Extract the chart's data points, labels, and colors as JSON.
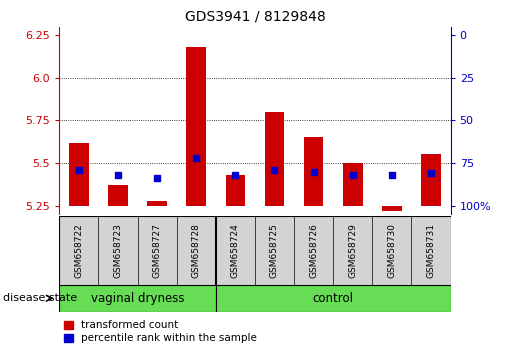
{
  "title": "GDS3941 / 8129848",
  "samples": [
    "GSM658722",
    "GSM658723",
    "GSM658727",
    "GSM658728",
    "GSM658724",
    "GSM658725",
    "GSM658726",
    "GSM658729",
    "GSM658730",
    "GSM658731"
  ],
  "red_values": [
    5.62,
    5.37,
    5.28,
    6.18,
    5.43,
    5.8,
    5.65,
    5.5,
    5.22,
    5.55
  ],
  "blue_values": [
    5.46,
    5.43,
    5.41,
    5.53,
    5.43,
    5.46,
    5.45,
    5.43,
    5.43,
    5.44
  ],
  "ylim": [
    5.2,
    6.3
  ],
  "yticks_left": [
    5.25,
    5.5,
    5.75,
    6.0,
    6.25
  ],
  "yticks_right": [
    0,
    25,
    50,
    75,
    100
  ],
  "groups": [
    {
      "label": "vaginal dryness",
      "start": 0,
      "end": 4
    },
    {
      "label": "control",
      "start": 4,
      "end": 10
    }
  ],
  "group_divider": 4,
  "bar_width": 0.5,
  "red_color": "#CC0000",
  "blue_color": "#0000CC",
  "baseline": 5.25,
  "disease_state_label": "disease state",
  "legend_red": "transformed count",
  "legend_blue": "percentile rank within the sample"
}
